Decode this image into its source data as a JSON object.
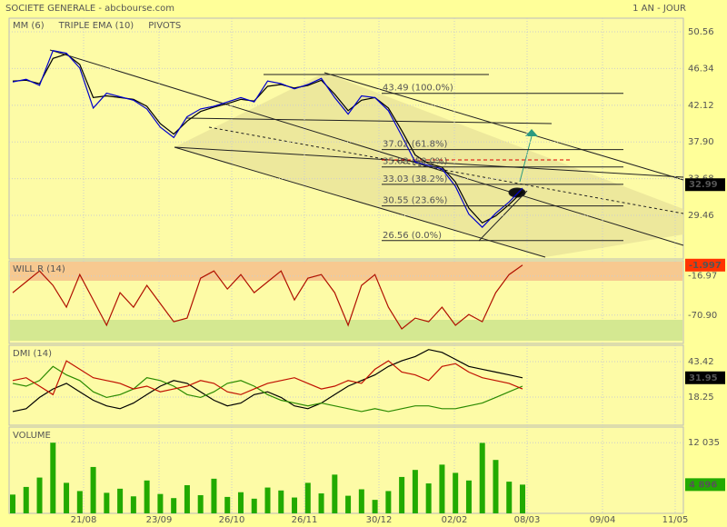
{
  "header": {
    "title": "SOCIETE GENERALE - abcbourse.com",
    "period": "1 AN - JOUR"
  },
  "xtick_labels": [
    "21/08",
    "23/09",
    "26/10",
    "26/11",
    "30/12",
    "02/02",
    "08/03",
    "09/04",
    "11/05"
  ],
  "chart_data": [
    {
      "type": "line",
      "pivots_label": "PIVOTS",
      "ylim": [
        24.45,
        52.13
      ],
      "yticks": [
        50.56,
        46.34,
        42.12,
        {
          "value": 37.9,
          "label": "37.90"
        },
        33.68,
        29.46
      ],
      "last": 32.99,
      "series": [
        {
          "name": "MM (6)",
          "color": "#000000",
          "values": [
            44.9,
            45.0,
            44.6,
            47.5,
            48.0,
            46.8,
            43.0,
            43.2,
            43.0,
            42.8,
            42.0,
            40.0,
            38.8,
            40.3,
            41.4,
            41.9,
            42.3,
            42.8,
            42.6,
            44.3,
            44.5,
            44.1,
            44.4,
            45.0,
            43.4,
            41.5,
            42.7,
            43.0,
            41.8,
            39.2,
            36.4,
            35.4,
            35.0,
            33.3,
            30.3,
            28.6,
            29.4,
            30.7,
            32.2
          ]
        },
        {
          "name": "TRIPLE EMA (10)",
          "color": "#0000cc",
          "values": [
            44.8,
            45.1,
            44.4,
            48.4,
            48.1,
            46.4,
            41.8,
            43.5,
            43.1,
            42.7,
            41.7,
            39.6,
            38.4,
            40.8,
            41.7,
            42.0,
            42.5,
            43.0,
            42.5,
            44.9,
            44.6,
            44.0,
            44.5,
            45.2,
            43.0,
            41.1,
            43.2,
            43.0,
            41.5,
            38.6,
            35.6,
            35.2,
            34.8,
            32.8,
            29.6,
            28.1,
            29.7,
            31.0,
            32.6
          ]
        }
      ],
      "levels": [
        {
          "value": 43.49,
          "label": "43.49  (100.0%)"
        },
        {
          "value": 37.02,
          "label": "37.02  (61.8%)"
        },
        {
          "value": 35.03,
          "label": "35.03  (50.0%)"
        },
        {
          "value": 33.03,
          "label": "33.03  (38.2%)"
        },
        {
          "value": 30.55,
          "label": "30.55  (23.6%)"
        },
        {
          "value": 26.56,
          "label": "26.56  (0.0%)"
        }
      ]
    },
    {
      "type": "line",
      "title": "WILL R (14)",
      "ylim": [
        -110,
        4
      ],
      "yticks": [
        -16.97,
        {
          "value": -70.9,
          "label": "-70.90"
        }
      ],
      "last": -1.997,
      "series": [
        {
          "color": "#b01000",
          "values": [
            -40,
            -25,
            -10,
            -30,
            -60,
            -15,
            -50,
            -85,
            -40,
            -60,
            -30,
            -55,
            -80,
            -75,
            -20,
            -10,
            -35,
            -15,
            -40,
            -25,
            -10,
            -50,
            -20,
            -15,
            -40,
            -85,
            -30,
            -15,
            -60,
            -90,
            -75,
            -80,
            -60,
            -85,
            -70,
            -80,
            -40,
            -15,
            -2
          ]
        }
      ]
    },
    {
      "type": "line",
      "title": "DMI (14)",
      "ylim": [
        -1.75,
        55.03
      ],
      "yticks": [
        43.42,
        18.25
      ],
      "last": 31.95,
      "series": [
        {
          "color": "#000000",
          "values": [
            8,
            10,
            18,
            24,
            28,
            22,
            16,
            12,
            10,
            14,
            20,
            26,
            30,
            28,
            22,
            16,
            12,
            14,
            20,
            22,
            18,
            12,
            10,
            14,
            20,
            26,
            30,
            34,
            40,
            44,
            47,
            52,
            50,
            45,
            40,
            38,
            36,
            34,
            31.95
          ]
        },
        {
          "color": "#2a8a00",
          "values": [
            28,
            26,
            30,
            40,
            34,
            30,
            22,
            18,
            20,
            24,
            32,
            30,
            26,
            20,
            18,
            22,
            28,
            30,
            26,
            20,
            16,
            14,
            12,
            14,
            12,
            10,
            8,
            10,
            8,
            10,
            12,
            12,
            10,
            10,
            12,
            14,
            18,
            22,
            26
          ]
        },
        {
          "color": "#c01000",
          "values": [
            30,
            32,
            26,
            20,
            44,
            38,
            32,
            30,
            28,
            24,
            26,
            22,
            24,
            26,
            30,
            28,
            22,
            20,
            24,
            28,
            30,
            32,
            28,
            24,
            26,
            30,
            28,
            38,
            44,
            36,
            34,
            30,
            40,
            42,
            36,
            32,
            30,
            28,
            24
          ]
        }
      ]
    },
    {
      "type": "bar",
      "title": "VOLUME",
      "ylim": [
        0,
        14700
      ],
      "yticks": [
        {
          "value": 12035,
          "label": "12 035"
        }
      ],
      "last": {
        "value": 4896,
        "label": "4 896"
      },
      "color": "#22aa00",
      "values": [
        3200,
        4500,
        6100,
        12035,
        5200,
        3800,
        7900,
        3500,
        4200,
        2900,
        5600,
        3300,
        2600,
        4800,
        3100,
        5900,
        2800,
        3600,
        2500,
        4400,
        3900,
        2700,
        5200,
        3400,
        6600,
        3000,
        4100,
        2300,
        3800,
        6200,
        7400,
        5100,
        8300,
        6900,
        5600,
        12000,
        9100,
        5400,
        4896
      ]
    }
  ]
}
